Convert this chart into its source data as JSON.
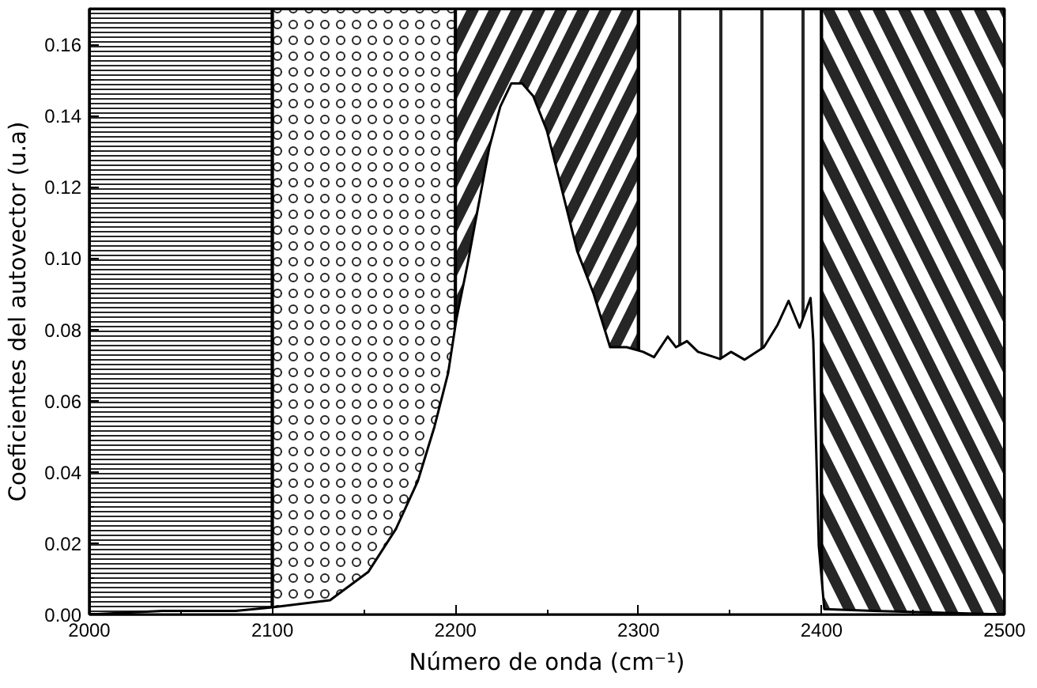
{
  "chart_data": {
    "type": "line",
    "xlabel": "Número de onda (cm⁻¹)",
    "ylabel": "Coeficientes del autovector (u.a)",
    "xlim": [
      2000,
      2500
    ],
    "xticks": [
      2000,
      2100,
      2200,
      2300,
      2400,
      2500
    ],
    "ylim": [
      0,
      0.17
    ],
    "yticks": [
      {
        "value": 0,
        "label": "0.00"
      },
      {
        "value": 0.02,
        "label": "0.02"
      },
      {
        "value": 0.04,
        "label": "0.04"
      },
      {
        "value": 0.06,
        "label": "0.06"
      },
      {
        "value": 0.08,
        "label": "0.08"
      },
      {
        "value": 0.1,
        "label": "0.10"
      },
      {
        "value": 0.12,
        "label": "0.12"
      },
      {
        "value": 0.14,
        "label": "0.14"
      },
      {
        "value": 0.16,
        "label": "0.16"
      }
    ],
    "bands": [
      {
        "axis": "x",
        "from": 2000,
        "to": 2100,
        "color": "#000000"
      },
      {
        "axis": "x",
        "from": 2100,
        "to": 2200,
        "color": "#000000"
      },
      {
        "axis": "x",
        "from": 2200,
        "to": 2300,
        "color": "#000000"
      },
      {
        "axis": "x",
        "from": 2300,
        "to": 2400,
        "color": "#000000"
      },
      {
        "axis": "x",
        "from": 2400,
        "to": 2500,
        "color": "#000000"
      }
    ],
    "series": [
      {
        "color": "#000000",
        "x": [
          2000,
          2040,
          2080,
          2100,
          2131.5,
          2152.5,
          2167.5,
          2179.5,
          2188.5,
          2196,
          2200.5,
          2206.5,
          2212.5,
          2218.5,
          2224.5,
          2230.5,
          2236.5,
          2242.5,
          2250,
          2257.5,
          2266.5,
          2275.5,
          2284.5,
          2293.5,
          2302.5,
          2308.5,
          2316,
          2320.5,
          2326.5,
          2332.5,
          2344.5,
          2350.5,
          2358,
          2368.5,
          2376,
          2382,
          2388,
          2394,
          2395.5,
          2398.5,
          2401.5,
          2428.5,
          2500
        ],
        "values": [
          0,
          0.001,
          0.001,
          0.002,
          0.004,
          0.012,
          0.024,
          0.0375,
          0.0526,
          0.0677,
          0.0828,
          0.098,
          0.1146,
          0.131,
          0.1425,
          0.149,
          0.149,
          0.1455,
          0.1357,
          0.1206,
          0.102,
          0.09,
          0.075,
          0.075,
          0.0737,
          0.0722,
          0.078,
          0.075,
          0.0767,
          0.0737,
          0.0717,
          0.0737,
          0.0715,
          0.075,
          0.0813,
          0.088,
          0.0805,
          0.0888,
          0.0767,
          0.0193,
          0.0015,
          0.001,
          0
        ]
      }
    ]
  }
}
